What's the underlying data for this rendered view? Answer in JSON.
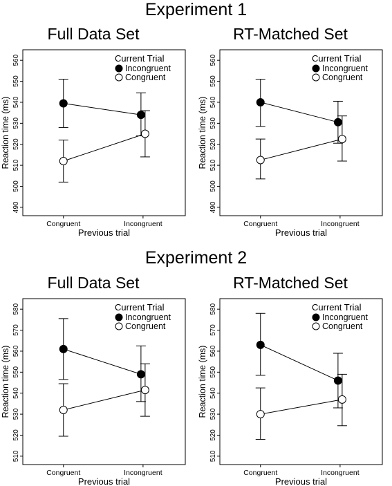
{
  "experiments": [
    {
      "title": "Experiment 1"
    },
    {
      "title": "Experiment 2"
    }
  ],
  "chart_data": [
    {
      "type": "line",
      "experiment": "Experiment 1",
      "title": "Full Data Set",
      "xlabel": "Previous trial",
      "ylabel": "Reaction time (ms)",
      "categories": [
        "Congruent",
        "Incongruent"
      ],
      "ylim": [
        486,
        565
      ],
      "yticks": [
        490,
        500,
        510,
        520,
        530,
        540,
        550,
        560
      ],
      "legend_title": "Current Trial",
      "legend_position": "top-right",
      "series": [
        {
          "name": "Incongruent",
          "fill": "#000000",
          "values": [
            539.5,
            534
          ],
          "err_low": [
            528,
            524
          ],
          "err_high": [
            551,
            544.5
          ]
        },
        {
          "name": "Congruent",
          "fill": "#ffffff",
          "values": [
            512,
            525
          ],
          "err_low": [
            502,
            514
          ],
          "err_high": [
            522,
            536
          ]
        }
      ]
    },
    {
      "type": "line",
      "experiment": "Experiment 1",
      "title": "RT-Matched Set",
      "xlabel": "Previous trial",
      "ylabel": "Reaction time (ms)",
      "categories": [
        "Congruent",
        "Incongruent"
      ],
      "ylim": [
        486,
        565
      ],
      "yticks": [
        490,
        500,
        510,
        520,
        530,
        540,
        550,
        560
      ],
      "legend_title": "Current Trial",
      "legend_position": "top-right",
      "series": [
        {
          "name": "Incongruent",
          "fill": "#000000",
          "values": [
            540,
            530.5
          ],
          "err_low": [
            528.5,
            520.5
          ],
          "err_high": [
            551,
            540.5
          ]
        },
        {
          "name": "Congruent",
          "fill": "#ffffff",
          "values": [
            512.5,
            522.5
          ],
          "err_low": [
            503.5,
            512
          ],
          "err_high": [
            522.5,
            533.5
          ]
        }
      ]
    },
    {
      "type": "line",
      "experiment": "Experiment 2",
      "title": "Full Data Set",
      "xlabel": "Previous trial",
      "ylabel": "Reaction time (ms)",
      "categories": [
        "Congruent",
        "Incongruent"
      ],
      "ylim": [
        506,
        585
      ],
      "yticks": [
        510,
        520,
        530,
        540,
        550,
        560,
        570,
        580
      ],
      "legend_title": "Current Trial",
      "legend_position": "top-right",
      "series": [
        {
          "name": "Incongruent",
          "fill": "#000000",
          "values": [
            561,
            549
          ],
          "err_low": [
            546.5,
            536
          ],
          "err_high": [
            575.5,
            562.5
          ]
        },
        {
          "name": "Congruent",
          "fill": "#ffffff",
          "values": [
            532,
            541.5
          ],
          "err_low": [
            519.5,
            529
          ],
          "err_high": [
            544.5,
            554
          ]
        }
      ]
    },
    {
      "type": "line",
      "experiment": "Experiment 2",
      "title": "RT-Matched Set",
      "xlabel": "Previous trial",
      "ylabel": "Reaction time (ms)",
      "categories": [
        "Congruent",
        "Incongruent"
      ],
      "ylim": [
        506,
        585
      ],
      "yticks": [
        510,
        520,
        530,
        540,
        550,
        560,
        570,
        580
      ],
      "legend_title": "Current Trial",
      "legend_position": "top-right",
      "series": [
        {
          "name": "Incongruent",
          "fill": "#000000",
          "values": [
            563,
            546
          ],
          "err_low": [
            548.5,
            533
          ],
          "err_high": [
            578,
            559
          ]
        },
        {
          "name": "Congruent",
          "fill": "#ffffff",
          "values": [
            530,
            537
          ],
          "err_low": [
            518,
            524.5
          ],
          "err_high": [
            542.5,
            549
          ]
        }
      ]
    }
  ]
}
